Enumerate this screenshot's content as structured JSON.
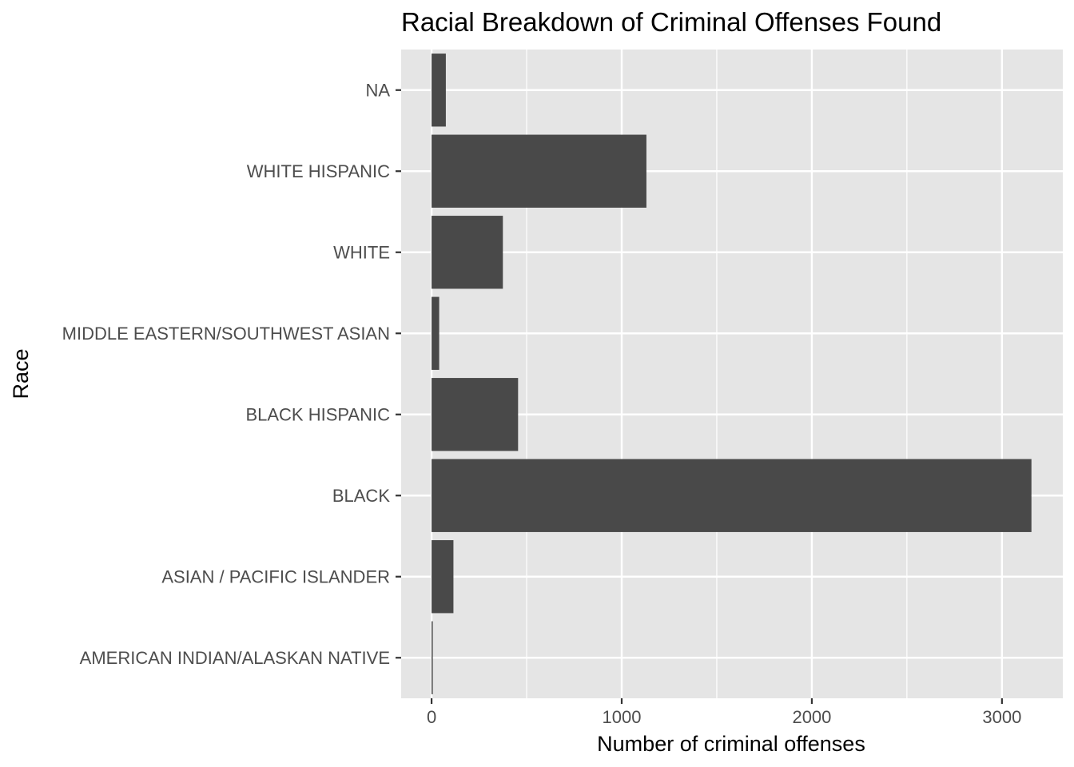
{
  "chart_data": {
    "type": "bar",
    "orientation": "horizontal",
    "title": "Racial Breakdown of Criminal Offenses Found",
    "xlabel": "Number of criminal offenses",
    "ylabel": "Race",
    "categories": [
      "AMERICAN INDIAN/ALASKAN NATIVE",
      "ASIAN / PACIFIC ISLANDER",
      "BLACK",
      "BLACK HISPANIC",
      "MIDDLE EASTERN/SOUTHWEST ASIAN",
      "WHITE",
      "WHITE HISPANIC",
      "NA"
    ],
    "values": [
      5,
      115,
      3155,
      455,
      40,
      375,
      1130,
      75
    ],
    "xlim": [
      -160,
      3320
    ],
    "x_ticks": [
      0,
      1000,
      2000,
      3000
    ],
    "x_tick_labels": [
      "0",
      "1000",
      "2000",
      "3000"
    ],
    "grid": true,
    "legend": "none",
    "colors": {
      "panel_background": "#e5e5e5",
      "grid_line": "#ffffff",
      "bar_fill": "#494949",
      "tick_text": "#4d4d4d",
      "tick_mark": "#333333"
    }
  }
}
